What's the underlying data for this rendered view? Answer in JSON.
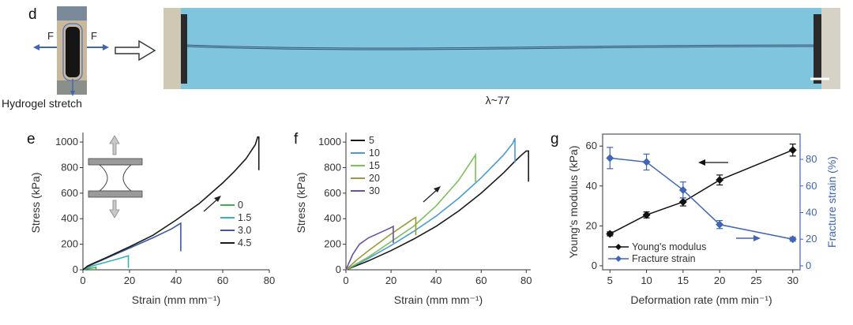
{
  "panel_d": {
    "label": "d",
    "force_left": "F",
    "force_right": "F",
    "sample_caption": "Hydrogel stretch",
    "stretch_caption": "λ~77"
  },
  "colors": {
    "black": "#1a1a1a",
    "green": "#3fb34a",
    "teal": "#3ab0b7",
    "blue": "#3b5aa6",
    "lightblue": "#4c9ad2",
    "lightgreen": "#7cc15a",
    "olive": "#9a9a3a",
    "purple": "#6a50a6",
    "modulus": "#111111",
    "strain": "#3f66b5",
    "bg_photo": "#7fc5dd"
  },
  "chart_data": [
    {
      "id": "e",
      "panel_label": "e",
      "type": "line",
      "xlabel": "Strain (mm mm⁻¹)",
      "ylabel": "Stress (kPa)",
      "xlim": [
        0,
        80
      ],
      "ylim": [
        0,
        1050
      ],
      "xticks": [
        0,
        20,
        40,
        60,
        80
      ],
      "yticks": [
        0,
        200,
        400,
        600,
        800,
        1000
      ],
      "legend_position": "right",
      "series": [
        {
          "name": "0",
          "color": "#3fb34a",
          "x": [
            0,
            1,
            2,
            3,
            4,
            5,
            5.6,
            5.6
          ],
          "y": [
            0,
            5,
            8,
            11,
            14,
            17,
            20,
            5
          ]
        },
        {
          "name": "1.5",
          "color": "#3ab0b7",
          "x": [
            0,
            2,
            5,
            10,
            15,
            19.5,
            19.5
          ],
          "y": [
            0,
            18,
            35,
            60,
            85,
            110,
            15
          ]
        },
        {
          "name": "3.0",
          "color": "#3b5aa6",
          "x": [
            0,
            2,
            5,
            10,
            20,
            30,
            38,
            42,
            42
          ],
          "y": [
            0,
            25,
            50,
            90,
            170,
            250,
            320,
            365,
            145
          ]
        },
        {
          "name": "4.5",
          "color": "#1a1a1a",
          "x": [
            0,
            2,
            5,
            10,
            20,
            30,
            40,
            50,
            60,
            65,
            70,
            74,
            75,
            75.5,
            75.5
          ],
          "y": [
            0,
            30,
            55,
            95,
            180,
            270,
            390,
            520,
            680,
            770,
            870,
            980,
            1040,
            1040,
            780
          ]
        }
      ]
    },
    {
      "id": "f",
      "panel_label": "f",
      "type": "line",
      "xlabel": "Strain (mm mm⁻¹)",
      "ylabel": "Stress (kPa)",
      "xlim": [
        0,
        82
      ],
      "ylim": [
        0,
        1050
      ],
      "xticks": [
        0,
        20,
        40,
        60,
        80
      ],
      "yticks": [
        0,
        200,
        400,
        600,
        800,
        1000
      ],
      "legend_position": "top-left",
      "series": [
        {
          "name": "5",
          "color": "#1a1a1a",
          "x": [
            0,
            10,
            20,
            30,
            40,
            50,
            60,
            70,
            75,
            78,
            80,
            81,
            81
          ],
          "y": [
            0,
            70,
            150,
            240,
            340,
            460,
            600,
            760,
            850,
            900,
            930,
            930,
            690
          ]
        },
        {
          "name": "10",
          "color": "#4c9ad2",
          "x": [
            0,
            10,
            20,
            30,
            40,
            50,
            60,
            70,
            74,
            75,
            75
          ],
          "y": [
            0,
            90,
            190,
            300,
            420,
            560,
            720,
            900,
            990,
            1030,
            840
          ]
        },
        {
          "name": "15",
          "color": "#7cc15a",
          "x": [
            0,
            10,
            20,
            30,
            40,
            50,
            57.5,
            57.5
          ],
          "y": [
            0,
            100,
            220,
            340,
            500,
            700,
            900,
            680
          ]
        },
        {
          "name": "20",
          "color": "#9a9a3a",
          "x": [
            0,
            5,
            10,
            20,
            30,
            31,
            31
          ],
          "y": [
            0,
            80,
            150,
            280,
            400,
            410,
            270
          ]
        },
        {
          "name": "30",
          "color": "#6a50a6",
          "x": [
            0,
            3,
            6,
            10,
            15,
            20,
            21,
            21
          ],
          "y": [
            0,
            120,
            200,
            250,
            290,
            330,
            340,
            210
          ]
        }
      ]
    },
    {
      "id": "g",
      "panel_label": "g",
      "type": "line",
      "xlabel": "Deformation rate (mm min⁻¹)",
      "ylabel": "Young's modulus (kPa)",
      "y2label": "Fracture strain (%)",
      "xlim": [
        4,
        31
      ],
      "ylim": [
        -2,
        66
      ],
      "y2lim": [
        -3,
        99
      ],
      "xticks": [
        5,
        10,
        15,
        20,
        25,
        30
      ],
      "yticks": [
        0,
        20,
        40,
        60
      ],
      "y2ticks": [
        0,
        20,
        40,
        60,
        80
      ],
      "legend_position": "bottom-left",
      "series": [
        {
          "name": "Young's modulus",
          "color": "#111111",
          "axis": "left",
          "x": [
            5,
            10,
            15,
            20,
            30
          ],
          "y": [
            16,
            25.5,
            32,
            43,
            58
          ],
          "err": [
            1,
            1.5,
            2,
            2.5,
            3
          ]
        },
        {
          "name": "Fracture strain",
          "color": "#3f66b5",
          "axis": "right",
          "x": [
            5,
            10,
            15,
            20,
            30
          ],
          "y": [
            81,
            78,
            57,
            31,
            20
          ],
          "err": [
            8,
            6,
            6,
            3,
            1.5
          ]
        }
      ]
    }
  ]
}
